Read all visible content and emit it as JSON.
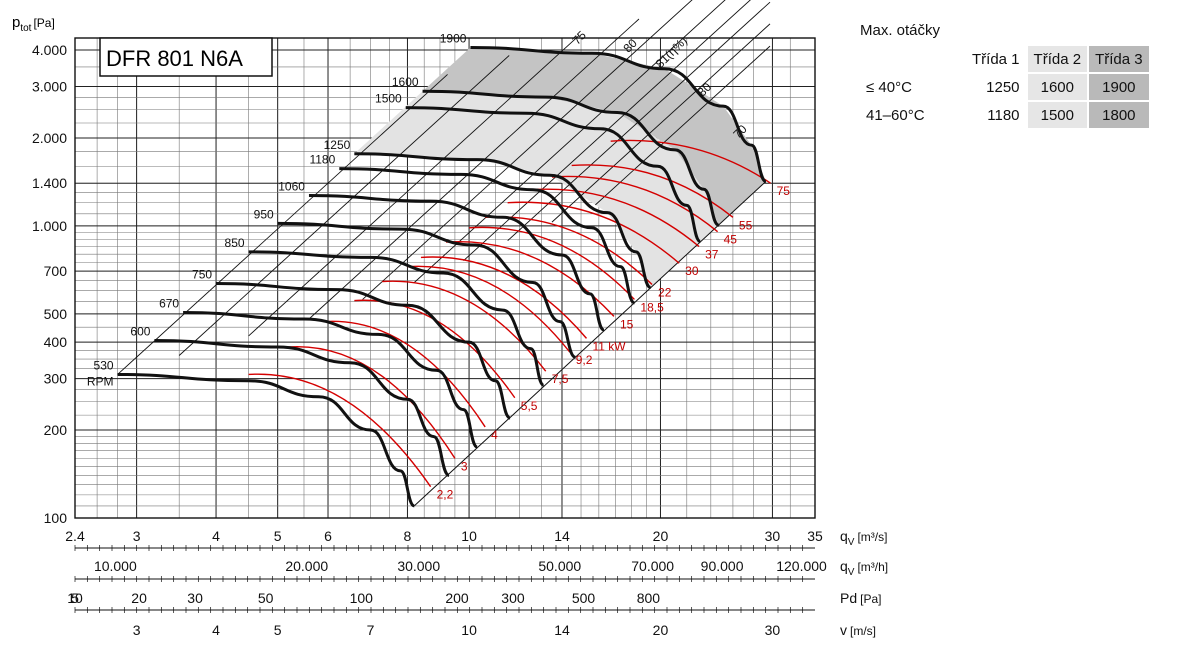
{
  "model": "DFR 801 N6A",
  "y_axis_label": "p",
  "y_axis_label_sub": "tot",
  "y_axis_unit": "[Pa]",
  "speeds_panel": {
    "title": "Max. otáčky",
    "headers": [
      "Třída 1",
      "Třída 2",
      "Třída 3"
    ],
    "rows": [
      {
        "label": "≤ 40°C",
        "values": [
          "1250",
          "1600",
          "1900"
        ]
      },
      {
        "label": "41–60°C",
        "values": [
          "1180",
          "1500",
          "1800"
        ]
      }
    ]
  },
  "axes": [
    {
      "label": "q",
      "sub": "V",
      "unit": "[m³/s]",
      "ticks": [
        "2.4",
        "3",
        "4",
        "5",
        "6",
        "8",
        "10",
        "14",
        "20",
        "30",
        "35"
      ]
    },
    {
      "label": "q",
      "sub": "V",
      "unit": "[m³/h]",
      "ticks": [
        "10.000",
        "20.000",
        "30.000",
        "50.000",
        "70.000",
        "90.000",
        "120.000"
      ]
    },
    {
      "label": "Pd",
      "sub": "",
      "unit": "[Pa]",
      "ticks": [
        "5",
        "10",
        "20",
        "30",
        "50",
        "100",
        "200",
        "300",
        "500",
        "800"
      ]
    },
    {
      "label": "v",
      "sub": "",
      "unit": "[m/s]",
      "ticks": [
        "3",
        "4",
        "5",
        "7",
        "10",
        "14",
        "20",
        "30"
      ]
    }
  ],
  "chart_data": {
    "type": "line",
    "xlabel": "qV [m³/s]",
    "ylabel": "ptot [Pa]",
    "x_scale": "log",
    "y_scale": "log",
    "xlim": [
      2.4,
      35
    ],
    "ylim": [
      100,
      4000
    ],
    "y_ticks": [
      "4.000",
      "3.000",
      "2.000",
      "1.400",
      "1.000",
      "700",
      "500",
      "400",
      "300",
      "200",
      "100"
    ],
    "rpm_curves": [
      {
        "rpm": "530",
        "unit": "RPM",
        "points": [
          [
            2.8,
            310
          ],
          [
            4.5,
            295
          ],
          [
            5.8,
            260
          ],
          [
            7.0,
            200
          ],
          [
            7.8,
            145
          ],
          [
            8.2,
            110
          ]
        ]
      },
      {
        "rpm": "600",
        "points": [
          [
            3.2,
            405
          ],
          [
            5.0,
            385
          ],
          [
            6.5,
            340
          ],
          [
            8.0,
            255
          ],
          [
            8.8,
            190
          ],
          [
            9.3,
            140
          ]
        ]
      },
      {
        "rpm": "670",
        "points": [
          [
            3.55,
            505
          ],
          [
            5.5,
            480
          ],
          [
            7.2,
            425
          ],
          [
            8.9,
            320
          ],
          [
            9.8,
            235
          ],
          [
            10.3,
            175
          ]
        ]
      },
      {
        "rpm": "750",
        "points": [
          [
            4.0,
            635
          ],
          [
            6.2,
            605
          ],
          [
            8.0,
            535
          ],
          [
            10.0,
            400
          ],
          [
            11.0,
            295
          ],
          [
            11.6,
            220
          ]
        ]
      },
      {
        "rpm": "850",
        "points": [
          [
            4.5,
            815
          ],
          [
            7.0,
            780
          ],
          [
            9.1,
            690
          ],
          [
            11.3,
            515
          ],
          [
            12.5,
            380
          ],
          [
            13.1,
            285
          ]
        ]
      },
      {
        "rpm": "950",
        "points": [
          [
            5.0,
            1020
          ],
          [
            7.8,
            975
          ],
          [
            10.2,
            860
          ],
          [
            12.6,
            640
          ],
          [
            13.9,
            470
          ],
          [
            14.7,
            355
          ]
        ]
      },
      {
        "rpm": "1060",
        "points": [
          [
            5.6,
            1270
          ],
          [
            8.7,
            1215
          ],
          [
            11.3,
            1070
          ],
          [
            14.0,
            795
          ],
          [
            15.5,
            585
          ],
          [
            16.3,
            440
          ]
        ]
      },
      {
        "rpm": "1180",
        "points": [
          [
            6.25,
            1570
          ],
          [
            9.7,
            1500
          ],
          [
            12.6,
            1330
          ],
          [
            15.6,
            985
          ],
          [
            17.3,
            725
          ],
          [
            18.2,
            545
          ]
        ]
      },
      {
        "rpm": "1250",
        "points": [
          [
            6.6,
            1765
          ],
          [
            10.3,
            1685
          ],
          [
            13.4,
            1490
          ],
          [
            16.5,
            1110
          ],
          [
            18.3,
            815
          ],
          [
            19.3,
            615
          ]
        ]
      },
      {
        "rpm": "1500",
        "points": [
          [
            7.95,
            2540
          ],
          [
            12.3,
            2430
          ],
          [
            16.1,
            2150
          ],
          [
            19.8,
            1600
          ],
          [
            22.0,
            1175
          ],
          [
            23.1,
            885
          ]
        ]
      },
      {
        "rpm": "1600",
        "points": [
          [
            8.45,
            2890
          ],
          [
            13.2,
            2760
          ],
          [
            17.1,
            2445
          ],
          [
            21.1,
            1820
          ],
          [
            23.4,
            1335
          ],
          [
            24.7,
            1005
          ]
        ]
      },
      {
        "rpm": "1900",
        "points": [
          [
            10.05,
            4080
          ],
          [
            15.6,
            3900
          ],
          [
            20.3,
            3450
          ],
          [
            25.1,
            2570
          ],
          [
            27.8,
            1890
          ],
          [
            29.3,
            1420
          ]
        ]
      }
    ],
    "power_kw": [
      "2,2",
      "3",
      "4",
      "5,5",
      "7,5",
      "9,2",
      "11 kW",
      "15",
      "18,5",
      "22",
      "30",
      "37",
      "45",
      "55",
      "75"
    ],
    "efficiency_lines": [
      "75",
      "80",
      "81(η%)",
      "80",
      "70"
    ],
    "power_points": [
      [
        8.7,
        128
      ],
      [
        9.5,
        160
      ],
      [
        10.6,
        205
      ],
      [
        11.8,
        258
      ],
      [
        13.2,
        318
      ],
      [
        14.4,
        370
      ],
      [
        15.3,
        412
      ],
      [
        16.9,
        490
      ],
      [
        18.2,
        560
      ],
      [
        19.4,
        630
      ],
      [
        21.4,
        745
      ],
      [
        23.0,
        850
      ],
      [
        24.6,
        955
      ],
      [
        26.0,
        1070
      ],
      [
        29.8,
        1400
      ]
    ],
    "power_kw_start": [
      [
        4.5,
        310
      ],
      [
        5.2,
        385
      ],
      [
        5.9,
        470
      ],
      [
        6.6,
        555
      ],
      [
        7.3,
        645
      ],
      [
        8.0,
        725
      ],
      [
        8.4,
        780
      ],
      [
        9.2,
        880
      ],
      [
        10.0,
        985
      ],
      [
        10.6,
        1070
      ],
      [
        11.5,
        1200
      ],
      [
        12.5,
        1330
      ],
      [
        13.5,
        1470
      ],
      [
        14.5,
        1610
      ],
      [
        16.7,
        1950
      ]
    ]
  }
}
